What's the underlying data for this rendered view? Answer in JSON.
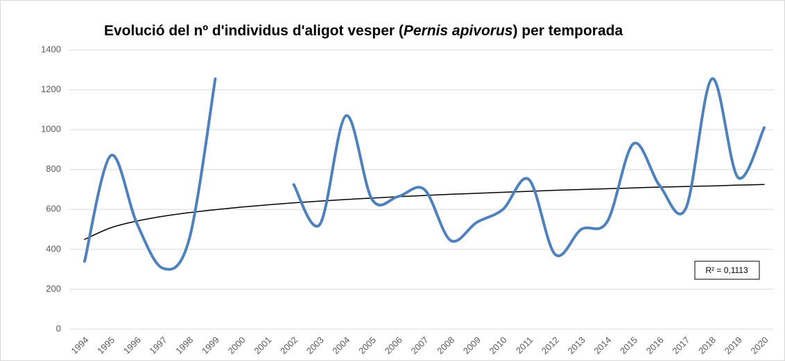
{
  "chart_data": {
    "type": "line",
    "title": [
      "Evolució del nº d'individus d'aligot vesper (",
      "Pernis apivorus",
      ")  per temporada"
    ],
    "categories": [
      "1994",
      "1995",
      "1996",
      "1997",
      "1998",
      "1999",
      "2000",
      "2001",
      "2002",
      "2003",
      "2004",
      "2005",
      "2006",
      "2007",
      "2008",
      "2009",
      "2010",
      "2011",
      "2012",
      "2013",
      "2014",
      "2015",
      "2016",
      "2017",
      "2018",
      "2019",
      "2020"
    ],
    "series": [
      {
        "color": "#4f81bd",
        "values": [
          340,
          870,
          530,
          305,
          450,
          1255,
          null,
          null,
          725,
          525,
          1070,
          650,
          665,
          700,
          445,
          535,
          600,
          750,
          375,
          500,
          540,
          930,
          720,
          605,
          1255,
          760,
          1010
        ]
      }
    ],
    "trendline": {
      "type": "logarithmic",
      "color": "#000000",
      "label": "R² = 0,1113",
      "values": [
        450,
        508,
        542,
        566,
        584,
        599,
        612,
        623,
        633,
        642,
        650,
        657,
        664,
        670,
        676,
        681,
        686,
        691,
        696,
        700,
        704,
        708,
        712,
        715,
        718,
        722,
        725
      ]
    },
    "ylim": [
      0,
      1400
    ],
    "yticks": [
      0,
      200,
      400,
      600,
      800,
      1000,
      1200,
      1400
    ],
    "grid": true
  }
}
